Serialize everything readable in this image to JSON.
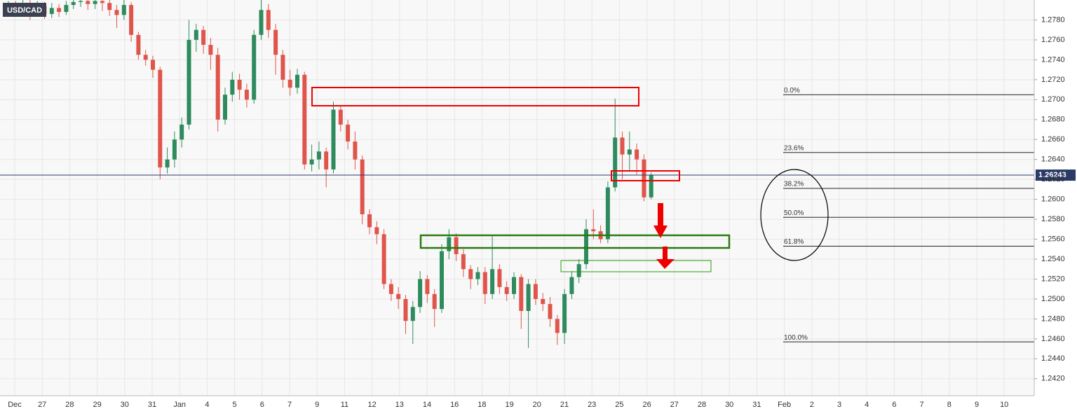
{
  "chart_data": {
    "type": "candlestick",
    "title": "USD/CAD",
    "up_color": "#2e8b5e",
    "down_color": "#e0554b",
    "ylim": [
      1.2403,
      1.28
    ],
    "yticks": [
      {
        "value": 1.278,
        "label": "1.2780"
      },
      {
        "value": 1.276,
        "label": "1.2760"
      },
      {
        "value": 1.274,
        "label": "1.2740"
      },
      {
        "value": 1.272,
        "label": "1.2720"
      },
      {
        "value": 1.27,
        "label": "1.2700"
      },
      {
        "value": 1.268,
        "label": "1.2680"
      },
      {
        "value": 1.266,
        "label": "1.2660"
      },
      {
        "value": 1.264,
        "label": "1.2640"
      },
      {
        "value": 1.262,
        "label": "1.2620"
      },
      {
        "value": 1.26,
        "label": "1.2600"
      },
      {
        "value": 1.258,
        "label": "1.2580"
      },
      {
        "value": 1.256,
        "label": "1.2560"
      },
      {
        "value": 1.254,
        "label": "1.2540"
      },
      {
        "value": 1.252,
        "label": "1.2520"
      },
      {
        "value": 1.25,
        "label": "1.2500"
      },
      {
        "value": 1.248,
        "label": "1.2480"
      },
      {
        "value": 1.246,
        "label": "1.2460"
      },
      {
        "value": 1.244,
        "label": "1.2440"
      },
      {
        "value": 1.242,
        "label": "1.2420"
      }
    ],
    "x_labels": [
      "Dec",
      "27",
      "28",
      "29",
      "30",
      "31",
      "Jan",
      "4",
      "5",
      "6",
      "7",
      "9",
      "11",
      "12",
      "13",
      "14",
      "16",
      "18",
      "19",
      "20",
      "21",
      "23",
      "25",
      "26",
      "27",
      "28",
      "30",
      "31",
      "Feb",
      "2",
      "3",
      "4",
      "6",
      "7",
      "8",
      "9",
      "10"
    ],
    "last_price": {
      "value": 1.26243,
      "label": "1.26243"
    },
    "fib_levels": [
      {
        "label": "0.0%",
        "price": 1.2705
      },
      {
        "label": "23.6%",
        "price": 1.2647
      },
      {
        "label": "38.2%",
        "price": 1.2611
      },
      {
        "label": "50.0%",
        "price": 1.2582
      },
      {
        "label": "61.8%",
        "price": 1.2553
      },
      {
        "label": "100.0%",
        "price": 1.2457
      }
    ],
    "ohlc": [
      [
        1.279,
        1.2799,
        1.2785,
        1.2795
      ],
      [
        1.2795,
        1.2799,
        1.2786,
        1.2792
      ],
      [
        1.2792,
        1.28,
        1.2788,
        1.2797
      ],
      [
        1.2797,
        1.28,
        1.278,
        1.279
      ],
      [
        1.279,
        1.2799,
        1.2785,
        1.2794
      ],
      [
        1.2794,
        1.2798,
        1.2781,
        1.2786
      ],
      [
        1.2786,
        1.2797,
        1.2782,
        1.2792
      ],
      [
        1.2792,
        1.2796,
        1.2783,
        1.2788
      ],
      [
        1.2788,
        1.2799,
        1.2785,
        1.2795
      ],
      [
        1.2795,
        1.28,
        1.2791,
        1.2798
      ],
      [
        1.2798,
        1.28,
        1.2793,
        1.2799
      ],
      [
        1.2799,
        1.28,
        1.279,
        1.2796
      ],
      [
        1.2796,
        1.28,
        1.2791,
        1.2799
      ],
      [
        1.2799,
        1.28,
        1.2789,
        1.2797
      ],
      [
        1.2797,
        1.28,
        1.2784,
        1.279
      ],
      [
        1.279,
        1.2795,
        1.2772,
        1.2785
      ],
      [
        1.2785,
        1.28,
        1.278,
        1.2795
      ],
      [
        1.2795,
        1.2798,
        1.2758,
        1.2765
      ],
      [
        1.2765,
        1.2768,
        1.274,
        1.2745
      ],
      [
        1.2745,
        1.275,
        1.2734,
        1.274
      ],
      [
        1.274,
        1.2744,
        1.2722,
        1.273
      ],
      [
        1.273,
        1.2733,
        1.262,
        1.2632
      ],
      [
        1.2632,
        1.2652,
        1.2626,
        1.264
      ],
      [
        1.264,
        1.2668,
        1.2632,
        1.266
      ],
      [
        1.266,
        1.2682,
        1.2652,
        1.2675
      ],
      [
        1.2675,
        1.278,
        1.267,
        1.276
      ],
      [
        1.276,
        1.2776,
        1.2748,
        1.277
      ],
      [
        1.277,
        1.2774,
        1.2746,
        1.2755
      ],
      [
        1.2755,
        1.2762,
        1.273,
        1.2745
      ],
      [
        1.2745,
        1.2752,
        1.2668,
        1.268
      ],
      [
        1.268,
        1.2712,
        1.2675,
        1.2705
      ],
      [
        1.2705,
        1.2728,
        1.2698,
        1.272
      ],
      [
        1.272,
        1.2726,
        1.27,
        1.271
      ],
      [
        1.271,
        1.2716,
        1.2692,
        1.27
      ],
      [
        1.27,
        1.277,
        1.2696,
        1.2765
      ],
      [
        1.2765,
        1.28,
        1.276,
        1.279
      ],
      [
        1.279,
        1.2796,
        1.2762,
        1.277
      ],
      [
        1.277,
        1.2776,
        1.2725,
        1.2745
      ],
      [
        1.2745,
        1.275,
        1.2712,
        1.272
      ],
      [
        1.272,
        1.273,
        1.2704,
        1.2712
      ],
      [
        1.2712,
        1.2731,
        1.2706,
        1.2725
      ],
      [
        1.2725,
        1.2728,
        1.263,
        1.2635
      ],
      [
        1.2635,
        1.2655,
        1.2628,
        1.264
      ],
      [
        1.264,
        1.2658,
        1.263,
        1.2648
      ],
      [
        1.2648,
        1.2652,
        1.2612,
        1.263
      ],
      [
        1.263,
        1.2698,
        1.2626,
        1.269
      ],
      [
        1.269,
        1.2694,
        1.2668,
        1.2675
      ],
      [
        1.2675,
        1.268,
        1.265,
        1.2658
      ],
      [
        1.2658,
        1.2668,
        1.263,
        1.264
      ],
      [
        1.264,
        1.2644,
        1.2575,
        1.2585
      ],
      [
        1.2585,
        1.259,
        1.2565,
        1.2572
      ],
      [
        1.2572,
        1.2578,
        1.2555,
        1.2565
      ],
      [
        1.2565,
        1.257,
        1.251,
        1.2515
      ],
      [
        1.2515,
        1.252,
        1.2498,
        1.2505
      ],
      [
        1.2505,
        1.2512,
        1.249,
        1.25
      ],
      [
        1.25,
        1.2504,
        1.2465,
        1.2478
      ],
      [
        1.2478,
        1.2498,
        1.2455,
        1.2492
      ],
      [
        1.2492,
        1.2528,
        1.2486,
        1.252
      ],
      [
        1.252,
        1.2524,
        1.2496,
        1.2505
      ],
      [
        1.2505,
        1.251,
        1.2472,
        1.249
      ],
      [
        1.249,
        1.2555,
        1.2486,
        1.2548
      ],
      [
        1.2548,
        1.257,
        1.254,
        1.2562
      ],
      [
        1.2562,
        1.2566,
        1.2538,
        1.2545
      ],
      [
        1.2545,
        1.255,
        1.2522,
        1.253
      ],
      [
        1.253,
        1.2534,
        1.251,
        1.252
      ],
      [
        1.252,
        1.2532,
        1.2514,
        1.2527
      ],
      [
        1.2527,
        1.2532,
        1.2495,
        1.2505
      ],
      [
        1.2505,
        1.2563,
        1.25,
        1.253
      ],
      [
        1.253,
        1.2535,
        1.2505,
        1.2512
      ],
      [
        1.2512,
        1.2518,
        1.2498,
        1.2505
      ],
      [
        1.2505,
        1.2527,
        1.25,
        1.2522
      ],
      [
        1.2522,
        1.2525,
        1.247,
        1.2488
      ],
      [
        1.2488,
        1.252,
        1.2451,
        1.2515
      ],
      [
        1.2515,
        1.252,
        1.2494,
        1.25
      ],
      [
        1.25,
        1.2506,
        1.2488,
        1.2495
      ],
      [
        1.2495,
        1.2502,
        1.2472,
        1.248
      ],
      [
        1.248,
        1.2484,
        1.2454,
        1.2466
      ],
      [
        1.2466,
        1.251,
        1.2455,
        1.2505
      ],
      [
        1.2505,
        1.2528,
        1.25,
        1.2522
      ],
      [
        1.2522,
        1.254,
        1.2516,
        1.2535
      ],
      [
        1.2535,
        1.258,
        1.253,
        1.257
      ],
      [
        1.257,
        1.259,
        1.256,
        1.2568
      ],
      [
        1.2568,
        1.2574,
        1.2556,
        1.256
      ],
      [
        1.256,
        1.2618,
        1.2556,
        1.2612
      ],
      [
        1.2612,
        1.2701,
        1.2608,
        1.2662
      ],
      [
        1.2662,
        1.2668,
        1.262,
        1.2645
      ],
      [
        1.2645,
        1.2668,
        1.2628,
        1.265
      ],
      [
        1.265,
        1.2656,
        1.2625,
        1.264
      ],
      [
        1.264,
        1.2645,
        1.2598,
        1.2602
      ],
      [
        1.2602,
        1.2627,
        1.26,
        1.2624
      ]
    ]
  }
}
